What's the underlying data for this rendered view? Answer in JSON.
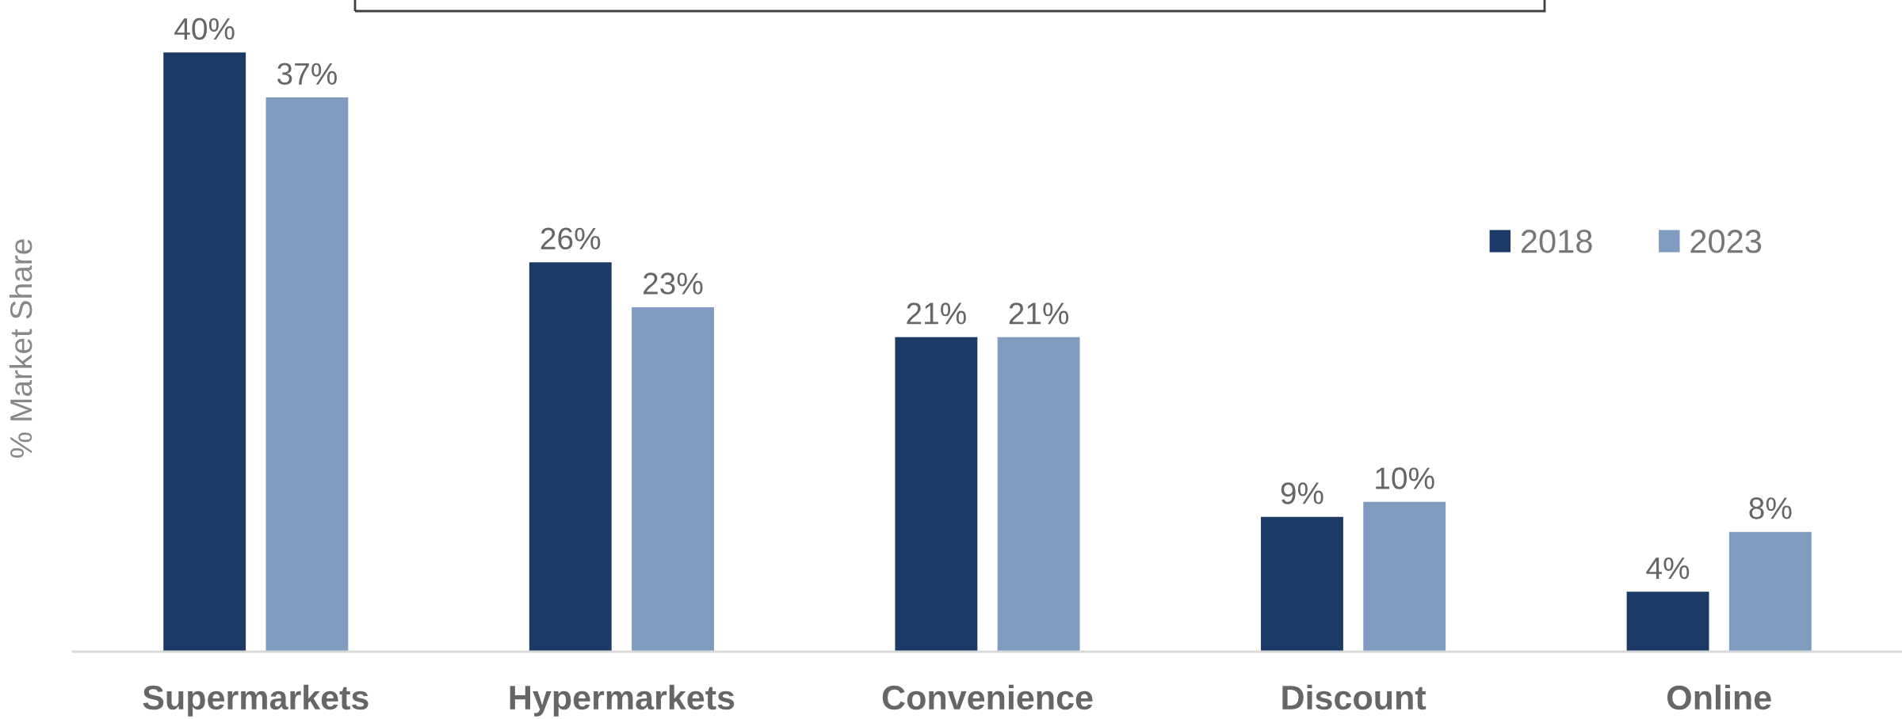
{
  "chart_data": {
    "type": "bar",
    "ylabel": "% Market Share",
    "categories": [
      "Supermarkets",
      "Hypermarkets",
      "Convenience",
      "Discount",
      "Online"
    ],
    "series": [
      {
        "name": "2018",
        "color": "#1b3a68",
        "values": [
          40,
          26,
          21,
          9,
          4
        ],
        "value_labels": [
          "40%",
          "26%",
          "21%",
          "9%",
          "4%"
        ]
      },
      {
        "name": "2023",
        "color": "#7f9cc0",
        "values": [
          37,
          23,
          21,
          10,
          8
        ],
        "value_labels": [
          "37%",
          "23%",
          "21%",
          "10%",
          "8%"
        ]
      }
    ],
    "legend": "right",
    "grid": false
  }
}
